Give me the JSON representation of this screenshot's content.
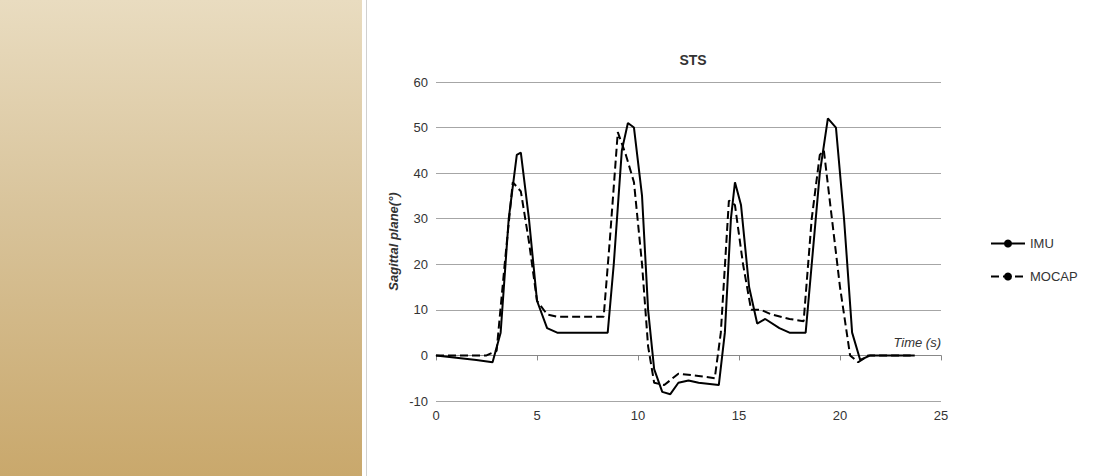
{
  "chart_data": {
    "type": "line",
    "title": "STS",
    "x_label": "Time (s)",
    "y_label": "Sagittal plane(°)",
    "xlim": [
      0,
      25
    ],
    "xticks": [
      0,
      5,
      10,
      15,
      20,
      25
    ],
    "ylim": [
      -10,
      60
    ],
    "yticks": [
      -10,
      0,
      10,
      20,
      30,
      40,
      50,
      60
    ],
    "grid": true,
    "legend": "right",
    "series": [
      {
        "name": "IMU",
        "color": "#000000",
        "line_style": "solid",
        "x": [
          0,
          1,
          2,
          2.8,
          3.2,
          3.6,
          4.0,
          4.2,
          4.6,
          5.0,
          5.5,
          6,
          7,
          8,
          8.5,
          8.8,
          9.2,
          9.5,
          9.8,
          10.2,
          10.5,
          10.8,
          11.2,
          11.6,
          12,
          12.5,
          13,
          14,
          14.3,
          14.6,
          14.8,
          15.1,
          15.5,
          15.9,
          16.3,
          17,
          17.5,
          18.3,
          18.6,
          19,
          19.4,
          19.8,
          20.2,
          20.6,
          21,
          21.5,
          22,
          23.7
        ],
        "values": [
          0,
          -0.5,
          -1,
          -1.5,
          5,
          30,
          44,
          44.5,
          30,
          12,
          6,
          5,
          5,
          5,
          5,
          20,
          45,
          51,
          50,
          35,
          10,
          -3,
          -8,
          -8.5,
          -6,
          -5.5,
          -6,
          -6.5,
          5,
          30,
          38,
          33,
          15,
          7,
          8,
          6,
          5,
          5,
          20,
          40,
          52,
          50,
          30,
          5,
          -1,
          0,
          0,
          0
        ]
      },
      {
        "name": "MOCAP",
        "color": "#000000",
        "line_style": "dashed",
        "x": [
          0,
          2.5,
          3,
          3.4,
          3.8,
          4.2,
          4.6,
          5,
          5.5,
          6,
          8.3,
          8.6,
          9,
          9.4,
          9.8,
          10.2,
          10.5,
          10.8,
          11.3,
          12,
          13,
          13.8,
          14.1,
          14.5,
          14.8,
          15.2,
          15.6,
          16.1,
          16.6,
          17.5,
          18.2,
          18.6,
          19,
          19.2,
          19.6,
          20,
          20.5,
          20.9,
          21.4,
          23.5
        ],
        "values": [
          0,
          0,
          1,
          20,
          38,
          36,
          25,
          12,
          9,
          8.5,
          8.5,
          25,
          49,
          44,
          38,
          20,
          2,
          -6,
          -6.5,
          -4,
          -4.5,
          -5,
          5,
          34,
          33,
          20,
          10,
          10,
          9,
          8,
          7.5,
          30,
          44,
          45,
          30,
          15,
          0,
          -1.5,
          0,
          0
        ]
      }
    ]
  }
}
